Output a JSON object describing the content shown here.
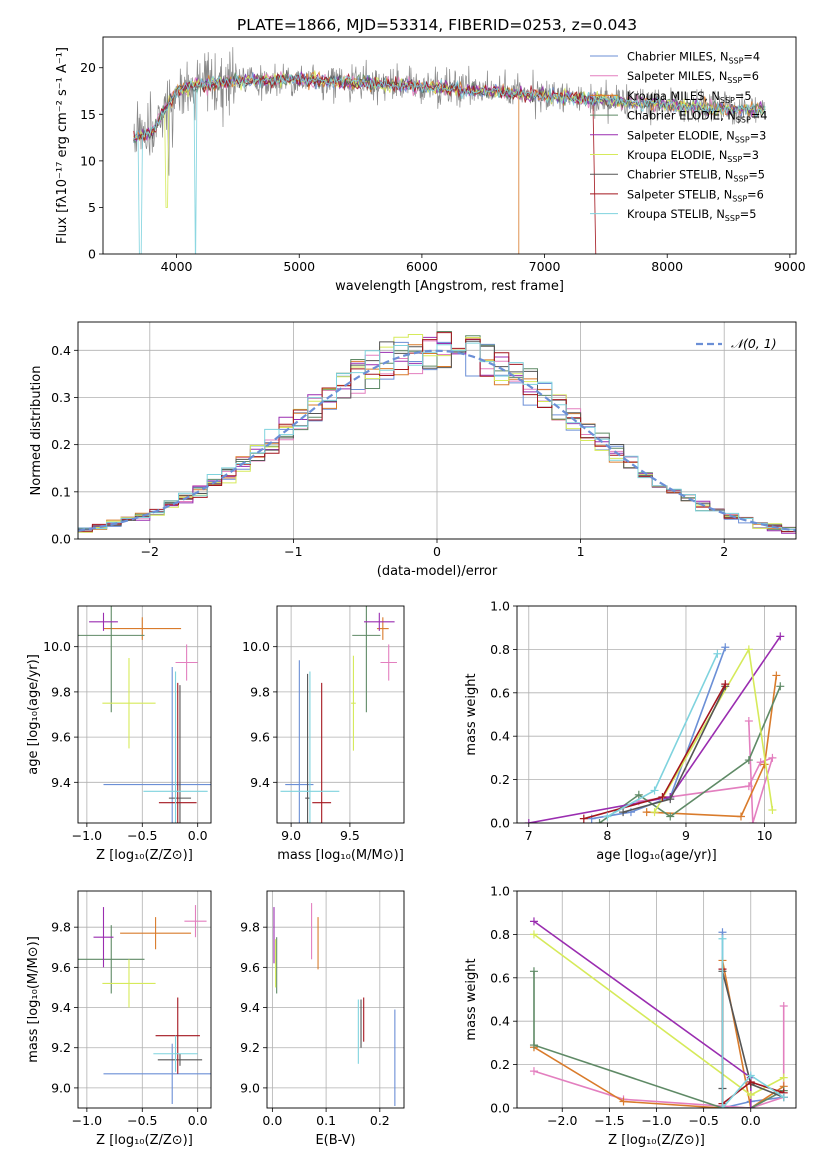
{
  "figure_title": "PLATE=1866, MJD=53314, FIBERID=0253, z=0.043",
  "models": [
    {
      "name": "Chabrier MILES",
      "sub": "SSP",
      "n": "4",
      "color": "#6b8fd6"
    },
    {
      "name": "Salpeter MILES",
      "sub": "SSP",
      "n": "6",
      "color": "#e37fbf"
    },
    {
      "name": "Kroupa MILES",
      "sub": "SSP",
      "n": "5",
      "color": "#d97b2b"
    },
    {
      "name": "Chabrier ELODIE",
      "sub": "SSP",
      "n": "4",
      "color": "#5f8a66"
    },
    {
      "name": "Salpeter ELODIE",
      "sub": "SSP",
      "n": "3",
      "color": "#9a2db0"
    },
    {
      "name": "Kroupa ELODIE",
      "sub": "SSP",
      "n": "3",
      "color": "#d6ea5a"
    },
    {
      "name": "Chabrier STELIB",
      "sub": "SSP",
      "n": "5",
      "color": "#555555"
    },
    {
      "name": "Salpeter STELIB",
      "sub": "SSP",
      "n": "6",
      "color": "#a3161f"
    },
    {
      "name": "Kroupa STELIB",
      "sub": "SSP",
      "n": "5",
      "color": "#7fd3de"
    }
  ],
  "data_color": "#888888",
  "chart_data": [
    {
      "id": "spectrum",
      "type": "line",
      "xlabel": "wavelength [Angstrom, rest frame]",
      "ylabel": "Flux [fλ10⁻¹⁷ erg cm⁻² s⁻¹ A⁻¹]",
      "xlim": [
        3400,
        9050
      ],
      "ylim": [
        0,
        23.3
      ],
      "xticks": [
        4000,
        5000,
        6000,
        7000,
        8000,
        9000
      ],
      "yticks": [
        0,
        5,
        10,
        15,
        20
      ],
      "legend_position": "upper-right",
      "continuum": [
        [
          3650,
          12.5
        ],
        [
          3800,
          13
        ],
        [
          3900,
          15.5
        ],
        [
          4000,
          17.5
        ],
        [
          4200,
          18.2
        ],
        [
          4500,
          18.6
        ],
        [
          5000,
          18.7
        ],
        [
          5500,
          18.4
        ],
        [
          6000,
          18
        ],
        [
          6500,
          17.5
        ],
        [
          7000,
          17
        ],
        [
          7500,
          16.5
        ],
        [
          8000,
          16
        ],
        [
          8500,
          15.5
        ],
        [
          8800,
          15.5
        ]
      ]
    },
    {
      "id": "residuals",
      "type": "step",
      "xlabel": "(data-model)/error",
      "ylabel": "Normed distribution",
      "xlim": [
        -2.5,
        2.5
      ],
      "ylim": [
        0,
        0.46
      ],
      "xticks": [
        -2,
        -1,
        0,
        1,
        2
      ],
      "yticks": [
        0.0,
        0.1,
        0.2,
        0.3,
        0.4
      ],
      "legend": "𝒩(0, 1)",
      "grid": true,
      "bin_range": [
        -2.5,
        2.5
      ],
      "bins": 50
    },
    {
      "id": "age_vs_Z",
      "type": "errorbar",
      "xlabel": "Z [log₁₀(Z/Z⊙)]",
      "ylabel": "age  [log₁₀(age/yr)]",
      "xlim": [
        -1.08,
        0.12
      ],
      "ylim": [
        9.22,
        10.18
      ],
      "xticks": [
        -1.0,
        -0.5,
        0.0
      ],
      "yticks": [
        9.4,
        9.6,
        9.8,
        10.0
      ],
      "grid": true,
      "points": [
        {
          "x": -0.23,
          "y": 9.39,
          "xerr": 0.62,
          "yerr": 0.52,
          "c": 0
        },
        {
          "x": -0.1,
          "y": 9.93,
          "xerr": 0.1,
          "yerr": 0.08,
          "c": 1
        },
        {
          "x": -0.5,
          "y": 10.08,
          "xerr": 0.35,
          "yerr": 0.05,
          "c": 2
        },
        {
          "x": -0.78,
          "y": 10.05,
          "xerr": 0.3,
          "yerr": 0.34,
          "c": 3
        },
        {
          "x": -0.85,
          "y": 10.11,
          "xerr": 0.13,
          "yerr": 0.04,
          "c": 4
        },
        {
          "x": -0.62,
          "y": 9.75,
          "xerr": 0.24,
          "yerr": 0.2,
          "c": 5
        },
        {
          "x": -0.16,
          "y": 9.33,
          "xerr": 0.1,
          "yerr": 0.5,
          "c": 6
        },
        {
          "x": -0.18,
          "y": 9.31,
          "xerr": 0.17,
          "yerr": 0.53,
          "c": 7
        },
        {
          "x": -0.2,
          "y": 9.36,
          "xerr": 0.29,
          "yerr": 0.53,
          "c": 8
        }
      ]
    },
    {
      "id": "age_vs_mass",
      "type": "errorbar",
      "xlabel": "mass [log₁₀(M/M⊙)]",
      "xlim": [
        8.88,
        9.96
      ],
      "ylim": [
        9.22,
        10.18
      ],
      "xticks": [
        9.0,
        9.5
      ],
      "yticks": [
        9.4,
        9.6,
        9.8,
        10.0
      ],
      "grid": true,
      "points": [
        {
          "x": 9.07,
          "y": 9.39,
          "xerr": 0.12,
          "yerr": 0.55,
          "c": 0
        },
        {
          "x": 9.83,
          "y": 9.93,
          "xerr": 0.07,
          "yerr": 0.08,
          "c": 1
        },
        {
          "x": 9.78,
          "y": 10.08,
          "xerr": 0.05,
          "yerr": 0.05,
          "c": 2
        },
        {
          "x": 9.64,
          "y": 10.05,
          "xerr": 0.12,
          "yerr": 0.34,
          "c": 3
        },
        {
          "x": 9.75,
          "y": 10.11,
          "xerr": 0.13,
          "yerr": 0.04,
          "c": 4
        },
        {
          "x": 9.53,
          "y": 9.75,
          "xerr": 0.02,
          "yerr": 0.21,
          "c": 5
        },
        {
          "x": 9.14,
          "y": 9.33,
          "xerr": 0.02,
          "yerr": 0.55,
          "c": 6
        },
        {
          "x": 9.26,
          "y": 9.31,
          "xerr": 0.08,
          "yerr": 0.53,
          "c": 7
        },
        {
          "x": 9.16,
          "y": 9.36,
          "xerr": 0.25,
          "yerr": 0.53,
          "c": 8
        }
      ]
    },
    {
      "id": "massweight_vs_age",
      "type": "line",
      "xlabel": "age  [log₁₀(age/yr)]",
      "ylabel": "mass weight",
      "xlim": [
        6.85,
        10.4
      ],
      "ylim": [
        0,
        1
      ],
      "xticks": [
        7,
        8,
        9,
        10
      ],
      "yticks": [
        0.0,
        0.2,
        0.4,
        0.6,
        0.8,
        1.0
      ],
      "grid": true,
      "series": [
        {
          "c": 0,
          "x": [
            7.8,
            8.3,
            8.8,
            9.5
          ],
          "y": [
            0.02,
            0.05,
            0.12,
            0.81
          ]
        },
        {
          "c": 1,
          "x": [
            8.4,
            9.8,
            9.95,
            10.1,
            9.85,
            9.8
          ],
          "y": [
            0.1,
            0.17,
            0.28,
            0.3,
            0.0,
            0.47
          ]
        },
        {
          "c": 2,
          "x": [
            8.5,
            9.7,
            10.0,
            10.15
          ],
          "y": [
            0.05,
            0.03,
            0.27,
            0.68
          ]
        },
        {
          "c": 3,
          "x": [
            7.9,
            8.4,
            8.8,
            9.8,
            10.2
          ],
          "y": [
            0.0,
            0.13,
            0.03,
            0.29,
            0.63
          ]
        },
        {
          "c": 4,
          "x": [
            7.0,
            8.8,
            10.2
          ],
          "y": [
            0.0,
            0.12,
            0.86
          ]
        },
        {
          "c": 5,
          "x": [
            8.6,
            9.8,
            10.1
          ],
          "y": [
            0.05,
            0.8,
            0.06
          ]
        },
        {
          "c": 6,
          "x": [
            8.2,
            8.8,
            9.5
          ],
          "y": [
            0.05,
            0.11,
            0.63
          ]
        },
        {
          "c": 7,
          "x": [
            7.7,
            8.7,
            9.5
          ],
          "y": [
            0.02,
            0.12,
            0.64
          ]
        },
        {
          "c": 8,
          "x": [
            8.0,
            8.6,
            9.4
          ],
          "y": [
            0.03,
            0.15,
            0.78
          ]
        }
      ]
    },
    {
      "id": "mass_vs_Z",
      "type": "errorbar",
      "xlabel": "Z [log₁₀(Z/Z⊙)]",
      "ylabel": "mass [log₁₀(M/M⊙)]",
      "xlim": [
        -1.08,
        0.12
      ],
      "ylim": [
        8.9,
        9.98
      ],
      "xticks": [
        -1.0,
        -0.5,
        0.0
      ],
      "yticks": [
        9.0,
        9.2,
        9.4,
        9.6,
        9.8
      ],
      "grid": true,
      "points": [
        {
          "x": -0.23,
          "y": 9.07,
          "xerr": 0.62,
          "yerr": 0.15,
          "c": 0
        },
        {
          "x": -0.02,
          "y": 9.83,
          "xerr": 0.1,
          "yerr": 0.08,
          "c": 1
        },
        {
          "x": -0.38,
          "y": 9.77,
          "xerr": 0.32,
          "yerr": 0.08,
          "c": 2
        },
        {
          "x": -0.78,
          "y": 9.64,
          "xerr": 0.3,
          "yerr": 0.17,
          "c": 3
        },
        {
          "x": -0.85,
          "y": 9.75,
          "xerr": 0.09,
          "yerr": 0.15,
          "c": 4
        },
        {
          "x": -0.62,
          "y": 9.52,
          "xerr": 0.24,
          "yerr": 0.12,
          "c": 5
        },
        {
          "x": -0.16,
          "y": 9.14,
          "xerr": 0.2,
          "yerr": 0.03,
          "c": 6
        },
        {
          "x": -0.18,
          "y": 9.26,
          "xerr": 0.2,
          "yerr": 0.19,
          "c": 7
        },
        {
          "x": -0.2,
          "y": 9.17,
          "xerr": 0.2,
          "yerr": 0.09,
          "c": 8
        }
      ]
    },
    {
      "id": "mass_vs_EBV",
      "type": "errorbar",
      "xlabel": "E(B-V)",
      "xlim": [
        -0.01,
        0.245
      ],
      "ylim": [
        8.9,
        9.98
      ],
      "xticks": [
        0.0,
        0.1,
        0.2
      ],
      "yticks": [
        9.0,
        9.2,
        9.4,
        9.6,
        9.8
      ],
      "grid": true,
      "points": [
        {
          "x": 0.228,
          "y": 9.15,
          "xerr": 0,
          "yerr": 0.24,
          "c": 0
        },
        {
          "x": 0.073,
          "y": 9.78,
          "xerr": 0,
          "yerr": 0.14,
          "c": 1
        },
        {
          "x": 0.085,
          "y": 9.72,
          "xerr": 0,
          "yerr": 0.13,
          "c": 2
        },
        {
          "x": 0.008,
          "y": 9.61,
          "xerr": 0,
          "yerr": 0.14,
          "c": 3
        },
        {
          "x": 0.003,
          "y": 9.76,
          "xerr": 0,
          "yerr": 0.14,
          "c": 4
        },
        {
          "x": 0.006,
          "y": 9.62,
          "xerr": 0,
          "yerr": 0.12,
          "c": 5
        },
        {
          "x": 0.165,
          "y": 9.32,
          "xerr": 0,
          "yerr": 0.12,
          "c": 6
        },
        {
          "x": 0.17,
          "y": 9.34,
          "xerr": 0,
          "yerr": 0.11,
          "c": 7
        },
        {
          "x": 0.16,
          "y": 9.28,
          "xerr": 0,
          "yerr": 0.16,
          "c": 8
        }
      ]
    },
    {
      "id": "massweight_vs_Z",
      "type": "line",
      "xlabel": "Z [log₁₀(Z/Z⊙)]",
      "ylabel": "mass weight",
      "xlim": [
        -2.48,
        0.48
      ],
      "ylim": [
        0,
        1
      ],
      "xticks": [
        -2.0,
        -1.5,
        -1.0,
        -0.5,
        0.0
      ],
      "yticks": [
        0.0,
        0.2,
        0.4,
        0.6,
        0.8,
        1.0
      ],
      "grid": true,
      "series": [
        {
          "c": 0,
          "x": [
            -0.3,
            -0.3,
            0.0,
            0.35
          ],
          "y": [
            0.81,
            0.0,
            0.03,
            0.05
          ]
        },
        {
          "c": 1,
          "x": [
            -2.3,
            -1.35,
            0.0,
            0.35,
            0.35
          ],
          "y": [
            0.17,
            0.04,
            0.0,
            0.05,
            0.47
          ]
        },
        {
          "c": 2,
          "x": [
            -2.3,
            -1.35,
            -0.3,
            -0.3,
            0.0,
            0.35
          ],
          "y": [
            0.28,
            0.03,
            0.0,
            0.68,
            0.0,
            0.1
          ]
        },
        {
          "c": 3,
          "x": [
            -2.3,
            -2.3,
            -0.3,
            0.0,
            0.35
          ],
          "y": [
            0.63,
            0.29,
            0.0,
            0.0,
            0.08
          ]
        },
        {
          "c": 4,
          "x": [
            -2.3,
            0.0,
            0.0
          ],
          "y": [
            0.86,
            0.14,
            0.0
          ]
        },
        {
          "c": 5,
          "x": [
            -2.3,
            0.0,
            0.35
          ],
          "y": [
            0.8,
            0.06,
            0.14
          ]
        },
        {
          "c": 6,
          "x": [
            -0.3,
            -0.3,
            0.0,
            0.35
          ],
          "y": [
            0.09,
            0.63,
            0.11,
            0.05
          ]
        },
        {
          "c": 7,
          "x": [
            -0.3,
            -0.3,
            0.0,
            0.35
          ],
          "y": [
            0.64,
            0.02,
            0.12,
            0.07
          ]
        },
        {
          "c": 8,
          "x": [
            -0.3,
            -0.3,
            0.0,
            0.35
          ],
          "y": [
            0.78,
            0.0,
            0.15,
            0.05
          ]
        }
      ]
    }
  ]
}
